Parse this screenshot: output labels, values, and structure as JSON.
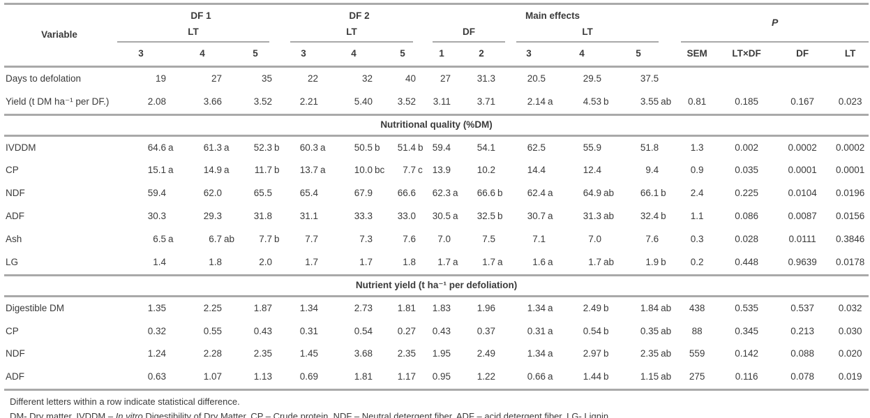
{
  "table": {
    "header": {
      "variable": "Variable",
      "df1": "DF 1",
      "df2": "DF 2",
      "main_effects": "Main effects",
      "p": "P",
      "lt": "LT",
      "df": "DF",
      "cols": [
        "3",
        "4",
        "5",
        "3",
        "4",
        "5",
        "1",
        "2",
        "3",
        "4",
        "5",
        "SEM",
        "LT×DF",
        "DF",
        "LT"
      ]
    },
    "sections": [
      {
        "rows": [
          {
            "label": "Days to defolation",
            "values": [
              "19",
              "27",
              "35",
              "22",
              "32",
              "40",
              "27",
              "31.3",
              "20.5",
              "29.5",
              "37.5",
              "",
              "",
              "",
              ""
            ]
          },
          {
            "label": "Yield (t DM ha⁻¹ per DF.)",
            "values": [
              "2.08",
              "3.66",
              "3.52",
              "2.21",
              "5.40",
              "3.52",
              "3.11",
              "3.71",
              "2.14 a",
              "4.53 b",
              "3.55 ab",
              "0.81",
              "0.185",
              "0.167",
              "0.023"
            ]
          }
        ]
      },
      {
        "title": "Nutritional quality (%DM)",
        "rows": [
          {
            "label": "IVDDM",
            "values": [
              "64.6 a",
              "61.3 a",
              "52.3 b",
              "60.3 a",
              "50.5 b",
              "51.4 b",
              "59.4",
              "54.1",
              "62.5",
              "55.9",
              "51.8",
              "1.3",
              "0.002",
              "0.0002",
              "0.0002"
            ]
          },
          {
            "label": "CP",
            "values": [
              "15.1 a",
              "14.9 a",
              "11.7 b",
              "13.7 a",
              "10.0 bc",
              "7.7 c",
              "13.9",
              "10.2",
              "14.4",
              "12.4",
              "9.4",
              "0.9",
              "0.035",
              "0.0001",
              "0.0001"
            ]
          },
          {
            "label": "NDF",
            "values": [
              "59.4",
              "62.0",
              "65.5",
              "65.4",
              "67.9",
              "66.6",
              "62.3 a",
              "66.6 b",
              "62.4 a",
              "64.9 ab",
              "66.1 b",
              "2.4",
              "0.225",
              "0.0104",
              "0.0196"
            ]
          },
          {
            "label": "ADF",
            "values": [
              "30.3",
              "29.3",
              "31.8",
              "31.1",
              "33.3",
              "33.0",
              "30.5 a",
              "32.5 b",
              "30.7 a",
              "31.3 ab",
              "32.4 b",
              "1.1",
              "0.086",
              "0.0087",
              "0.0156"
            ]
          },
          {
            "label": "Ash",
            "values": [
              "6.5 a",
              "6.7 ab",
              "7.7 b",
              "7.7",
              "7.3",
              "7.6",
              "7.0",
              "7.5",
              "7.1",
              "7.0",
              "7.6",
              "0.3",
              "0.028",
              "0.0111",
              "0.3846"
            ]
          },
          {
            "label": "LG",
            "values": [
              "1.4",
              "1.8",
              "2.0",
              "1.7",
              "1.7",
              "1.8",
              "1.7 a",
              "1.7 a",
              "1.6 a",
              "1.7 ab",
              "1.9 b",
              "0.2",
              "0.448",
              "0.9639",
              "0.0178"
            ]
          }
        ]
      },
      {
        "title": "Nutrient yield (t ha⁻¹ per defoliation)",
        "rows": [
          {
            "label": "Digestible DM",
            "values": [
              "1.35",
              "2.25",
              "1.87",
              "1.34",
              "2.73",
              "1.81",
              "1.83",
              "1.96",
              "1.34 a",
              "2.49 b",
              "1.84 ab",
              "438",
              "0.535",
              "0.537",
              "0.032"
            ]
          },
          {
            "label": "CP",
            "values": [
              "0.32",
              "0.55",
              "0.43",
              "0.31",
              "0.54",
              "0.27",
              "0.43",
              "0.37",
              "0.31 a",
              "0.54 b",
              "0.35 ab",
              "88",
              "0.345",
              "0.213",
              "0.030"
            ]
          },
          {
            "label": "NDF",
            "values": [
              "1.24",
              "2.28",
              "2.35",
              "1.45",
              "3.68",
              "2.35",
              "1.95",
              "2.49",
              "1.34 a",
              "2.97 b",
              "2.35 ab",
              "559",
              "0.142",
              "0.088",
              "0.020"
            ]
          },
          {
            "label": "ADF",
            "values": [
              "0.63",
              "1.07",
              "1.13",
              "0.69",
              "1.81",
              "1.17",
              "0.95",
              "1.22",
              "0.66 a",
              "1.44 b",
              "1.15 ab",
              "275",
              "0.116",
              "0.078",
              "0.019"
            ]
          }
        ]
      }
    ]
  },
  "footnotes": {
    "line1": "Different letters within a row indicate statistical difference.",
    "line2_pre": "DM- Dry matter, IVDDM – ",
    "line2_italic": "In vitro",
    "line2_post": " Digestibility of Dry Matter, CP – Crude protein, NDF – Neutral detergent fiber, ADF – acid detergent fiber, LG- Lignin"
  },
  "colors": {
    "line": "#a9a9a9",
    "text": "#3a3a3a"
  }
}
